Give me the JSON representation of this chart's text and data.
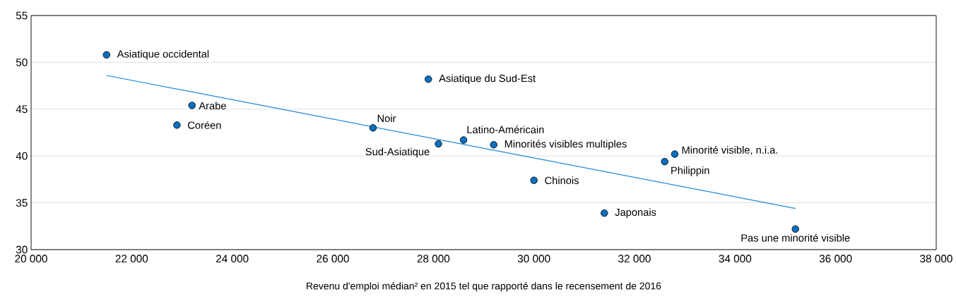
{
  "chart_data": {
    "type": "scatter",
    "xlabel": "Revenu d'emploi médian² en 2015 tel que rapporté dans le recensement de 2016",
    "xlim": [
      20000,
      38000
    ],
    "xticks": [
      {
        "value": 20000,
        "label": "20 000"
      },
      {
        "value": 22000,
        "label": "22 000"
      },
      {
        "value": 24000,
        "label": "24 000"
      },
      {
        "value": 26000,
        "label": "26 000"
      },
      {
        "value": 28000,
        "label": "28 000"
      },
      {
        "value": 30000,
        "label": "30 000"
      },
      {
        "value": 32000,
        "label": "32 000"
      },
      {
        "value": 34000,
        "label": "34 000"
      },
      {
        "value": 36000,
        "label": "36 000"
      },
      {
        "value": 38000,
        "label": "38 000"
      }
    ],
    "ylim": [
      30,
      55
    ],
    "yticks": [
      30,
      35,
      40,
      45,
      50,
      55
    ],
    "grid": "y",
    "series": [
      {
        "x": [
          21500,
          27900,
          23200,
          22900,
          26800,
          28100,
          28600,
          29200,
          30000,
          31400,
          32600,
          32800,
          35200
        ],
        "values": [
          50.8,
          48.2,
          45.4,
          43.3,
          43.0,
          41.3,
          41.7,
          41.2,
          37.4,
          33.9,
          39.4,
          40.2,
          32.2
        ],
        "color": "#0b6fc0",
        "marker": "circle"
      },
      {
        "type": "line",
        "x": [
          21500,
          35200
        ],
        "values": [
          48.6,
          34.4
        ],
        "color": "#1f88d6",
        "marker": "none",
        "line_style": "solid"
      }
    ],
    "annotations": [
      {
        "text": "Asiatique occidental",
        "x": 21500,
        "y": 50.8
      },
      {
        "text": "Asiatique du Sud-Est",
        "x": 27900,
        "y": 48.2
      },
      {
        "text": "Arabe",
        "x": 23200,
        "y": 45.4
      },
      {
        "text": "Coréen",
        "x": 22900,
        "y": 43.3
      },
      {
        "text": "Noir",
        "x": 26800,
        "y": 43.0
      },
      {
        "text": "Sud-Asiatique",
        "x": 28100,
        "y": 41.3
      },
      {
        "text": "Latino-Américain",
        "x": 28600,
        "y": 41.7
      },
      {
        "text": "Minorités visibles multiples",
        "x": 29200,
        "y": 41.2
      },
      {
        "text": "Chinois",
        "x": 30000,
        "y": 37.4
      },
      {
        "text": "Japonais",
        "x": 31400,
        "y": 33.9
      },
      {
        "text": "Philippin",
        "x": 32600,
        "y": 39.4
      },
      {
        "text": "Minorité visible, n.i.a.",
        "x": 32800,
        "y": 40.2
      },
      {
        "text": "Pas une minorité visible",
        "x": 35200,
        "y": 32.2
      }
    ]
  }
}
